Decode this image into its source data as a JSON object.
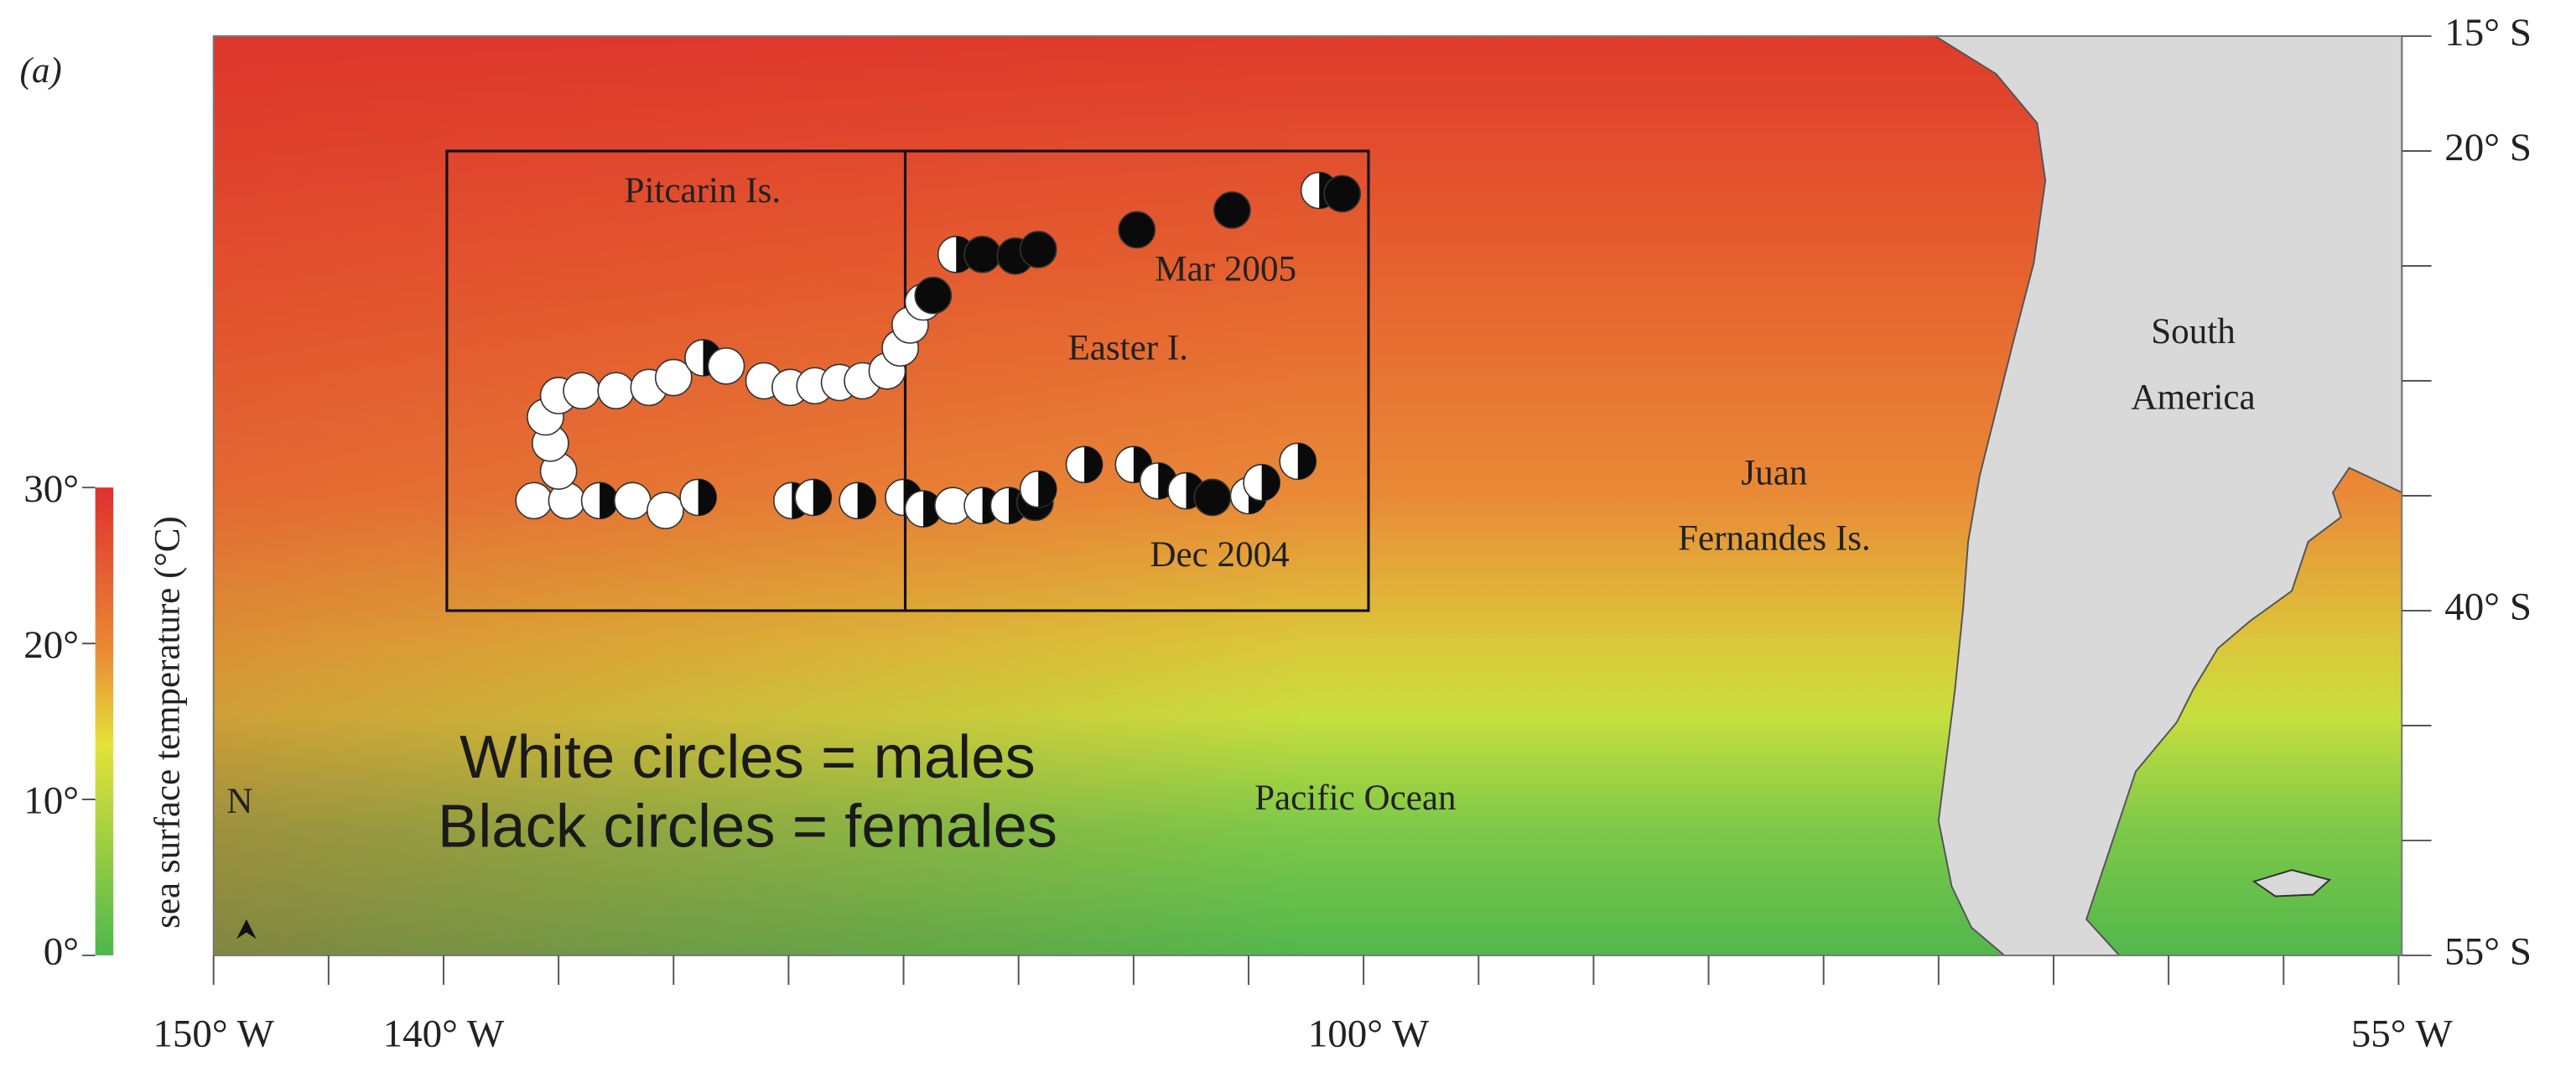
{
  "panel_label": "(a)",
  "places": {
    "pitcairn": "Pitcarin Is.",
    "easter": "Easter I.",
    "south_america": [
      "South",
      "America"
    ],
    "juan_fernandes": [
      "Juan",
      "Fernandes Is."
    ],
    "pacific": "Pacific Ocean"
  },
  "track_labels": {
    "start": "Dec 2004",
    "end": "Mar 2005"
  },
  "legend": [
    "White circles = males",
    "Black circles = females"
  ],
  "north": "N",
  "colorbar": {
    "label": "sea surface temperature (°C)",
    "ticks": [
      "30°",
      "20°",
      "10°",
      "0°"
    ]
  },
  "longitude_labels": [
    "150° W",
    "140° W",
    "100° W",
    "55° W"
  ],
  "latitude_labels": [
    "15° S",
    "20° S",
    "40° S",
    "55° S"
  ]
}
